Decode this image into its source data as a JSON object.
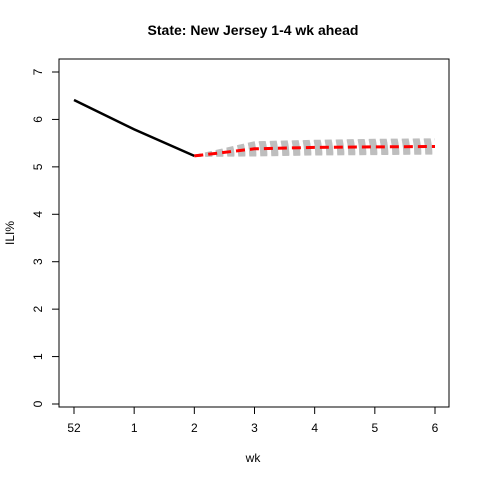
{
  "chart_data": {
    "type": "line",
    "title": "State: New Jersey 1-4 wk ahead",
    "xlabel": "wk",
    "ylabel": "ILI%",
    "x_tick_labels": [
      "52",
      "1",
      "2",
      "3",
      "4",
      "5",
      "6"
    ],
    "y_ticks": [
      0,
      1,
      2,
      3,
      4,
      5,
      6,
      7
    ],
    "xlim": [
      0,
      6
    ],
    "ylim": [
      0,
      7
    ],
    "grid": false,
    "colors": {
      "observed": "#000000",
      "forecast_mean": "#ff0000",
      "forecast_samples": "#bebebe",
      "axis": "#000000"
    },
    "series": [
      {
        "role": "observed",
        "x": [
          0,
          1,
          2
        ],
        "values": [
          6.41,
          5.79,
          5.23
        ]
      },
      {
        "role": "forecast_mean",
        "x": [
          2,
          3,
          4,
          5,
          6
        ],
        "values": [
          5.23,
          5.38,
          5.41,
          5.42,
          5.43
        ]
      }
    ],
    "forecast_band": {
      "x": [
        2,
        3,
        4,
        5,
        6
      ],
      "lower": [
        5.23,
        5.24,
        5.26,
        5.27,
        5.28
      ],
      "upper": [
        5.23,
        5.52,
        5.55,
        5.57,
        5.58
      ]
    }
  }
}
